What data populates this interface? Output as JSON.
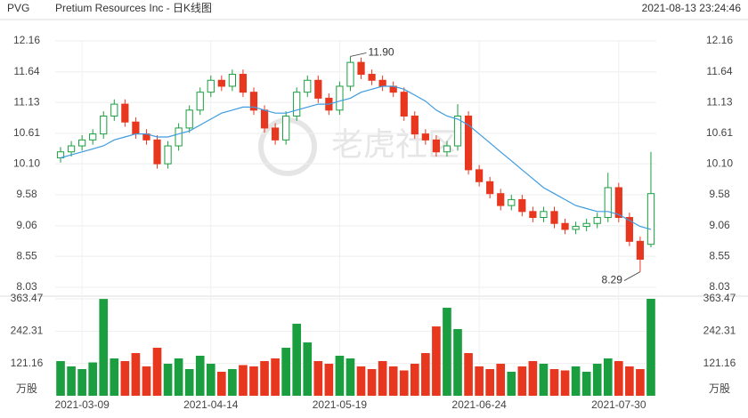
{
  "header": {
    "symbol": "PVG",
    "title": "Pretium Resources Inc - 日K线图",
    "timestamp": "2021-08-13 23:24:46",
    "watermark": "老虎社区"
  },
  "chart_data": {
    "type": "candlestick",
    "categories": [
      null,
      null,
      "2021-03-09",
      null,
      null,
      null,
      null,
      null,
      null,
      null,
      null,
      null,
      null,
      null,
      "2021-04-14",
      null,
      null,
      null,
      null,
      null,
      null,
      null,
      null,
      null,
      null,
      null,
      "2021-05-19",
      null,
      null,
      null,
      null,
      null,
      null,
      null,
      null,
      null,
      null,
      null,
      null,
      "2021-06-24",
      null,
      null,
      null,
      null,
      null,
      null,
      null,
      null,
      null,
      null,
      null,
      null,
      "2021-07-30",
      null,
      null,
      null
    ],
    "open": [
      10.2,
      10.3,
      10.4,
      10.5,
      10.6,
      10.9,
      11.1,
      10.8,
      10.6,
      10.5,
      10.1,
      10.4,
      10.7,
      11.0,
      11.3,
      11.5,
      11.4,
      11.6,
      11.3,
      11.0,
      10.7,
      10.5,
      10.9,
      11.3,
      11.5,
      11.2,
      11.0,
      11.4,
      11.8,
      11.6,
      11.5,
      11.4,
      11.3,
      10.9,
      10.6,
      10.5,
      10.3,
      10.4,
      10.9,
      10.0,
      9.8,
      9.6,
      9.4,
      9.5,
      9.3,
      9.2,
      9.3,
      9.1,
      9.0,
      9.05,
      9.1,
      9.2,
      9.7,
      9.2,
      8.8,
      8.75
    ],
    "high": [
      10.38,
      10.48,
      10.58,
      10.68,
      10.98,
      11.18,
      11.18,
      10.88,
      10.68,
      10.58,
      10.48,
      10.78,
      11.08,
      11.38,
      11.58,
      11.58,
      11.68,
      11.68,
      11.38,
      11.08,
      10.78,
      10.98,
      11.38,
      11.58,
      11.58,
      11.28,
      11.48,
      11.9,
      11.88,
      11.68,
      11.58,
      11.48,
      11.38,
      10.98,
      10.68,
      10.58,
      10.48,
      11.1,
      10.98,
      10.08,
      9.88,
      9.68,
      9.58,
      9.58,
      9.38,
      9.38,
      9.38,
      9.18,
      9.13,
      9.18,
      9.28,
      9.95,
      9.78,
      9.28,
      8.88,
      10.3
    ],
    "low": [
      10.12,
      10.22,
      10.32,
      10.42,
      10.52,
      10.82,
      10.72,
      10.52,
      10.42,
      10.02,
      10.02,
      10.32,
      10.62,
      10.92,
      11.22,
      11.32,
      11.32,
      11.22,
      10.92,
      10.62,
      10.42,
      10.42,
      10.82,
      11.22,
      11.12,
      10.92,
      10.92,
      11.32,
      11.52,
      11.42,
      11.32,
      11.22,
      10.82,
      10.52,
      10.42,
      10.22,
      10.22,
      10.32,
      9.92,
      9.72,
      9.52,
      9.32,
      9.32,
      9.22,
      9.12,
      9.12,
      9.02,
      8.92,
      8.92,
      8.97,
      9.02,
      9.12,
      9.12,
      8.72,
      8.29,
      8.7
    ],
    "close": [
      10.3,
      10.4,
      10.5,
      10.6,
      10.9,
      11.1,
      10.8,
      10.6,
      10.5,
      10.1,
      10.4,
      10.7,
      11.0,
      11.3,
      11.5,
      11.4,
      11.6,
      11.3,
      11.0,
      10.7,
      10.5,
      10.9,
      11.3,
      11.5,
      11.2,
      11.0,
      11.4,
      11.8,
      11.6,
      11.5,
      11.4,
      11.3,
      10.9,
      10.6,
      10.5,
      10.3,
      10.4,
      10.9,
      10.0,
      9.8,
      9.6,
      9.4,
      9.5,
      9.3,
      9.2,
      9.3,
      9.1,
      9.0,
      9.05,
      9.1,
      9.2,
      9.7,
      9.2,
      8.8,
      8.5,
      9.6
    ],
    "volume": [
      130,
      110,
      100,
      125,
      363,
      140,
      130,
      160,
      110,
      180,
      120,
      140,
      100,
      150,
      120,
      90,
      100,
      115,
      110,
      130,
      140,
      180,
      270,
      200,
      130,
      120,
      150,
      140,
      110,
      100,
      130,
      110,
      95,
      120,
      160,
      260,
      330,
      250,
      160,
      110,
      100,
      120,
      90,
      110,
      130,
      120,
      100,
      95,
      110,
      90,
      120,
      140,
      130,
      110,
      100,
      363.47
    ],
    "ma": {
      "color": "#3d9be0",
      "values": [
        10.2,
        10.25,
        10.3,
        10.35,
        10.4,
        10.5,
        10.55,
        10.6,
        10.6,
        10.55,
        10.55,
        10.6,
        10.65,
        10.75,
        10.85,
        10.95,
        11.0,
        11.05,
        11.05,
        11.0,
        10.95,
        10.95,
        11.0,
        11.05,
        11.1,
        11.1,
        11.15,
        11.2,
        11.3,
        11.35,
        11.4,
        11.4,
        11.35,
        11.25,
        11.15,
        11.0,
        10.9,
        10.85,
        10.75,
        10.6,
        10.45,
        10.3,
        10.15,
        10.0,
        9.85,
        9.7,
        9.6,
        9.5,
        9.4,
        9.35,
        9.3,
        9.3,
        9.25,
        9.15,
        9.05,
        9.0
      ]
    },
    "up_color": "#1a9e3f",
    "down_color": "#e8371f",
    "ylim": [
      8.03,
      12.16
    ],
    "yticks": [
      8.03,
      8.55,
      9.06,
      9.58,
      {
        "value": 10.1,
        "label": "10.10"
      },
      10.61,
      11.13,
      11.64,
      12.16
    ],
    "volume_ylim": [
      0,
      363.47
    ],
    "volume_yticks": [
      121.16,
      242.31,
      363.47
    ],
    "volume_unit": "万股",
    "annotations": [
      "11.90",
      "8.29"
    ],
    "grid": true
  }
}
